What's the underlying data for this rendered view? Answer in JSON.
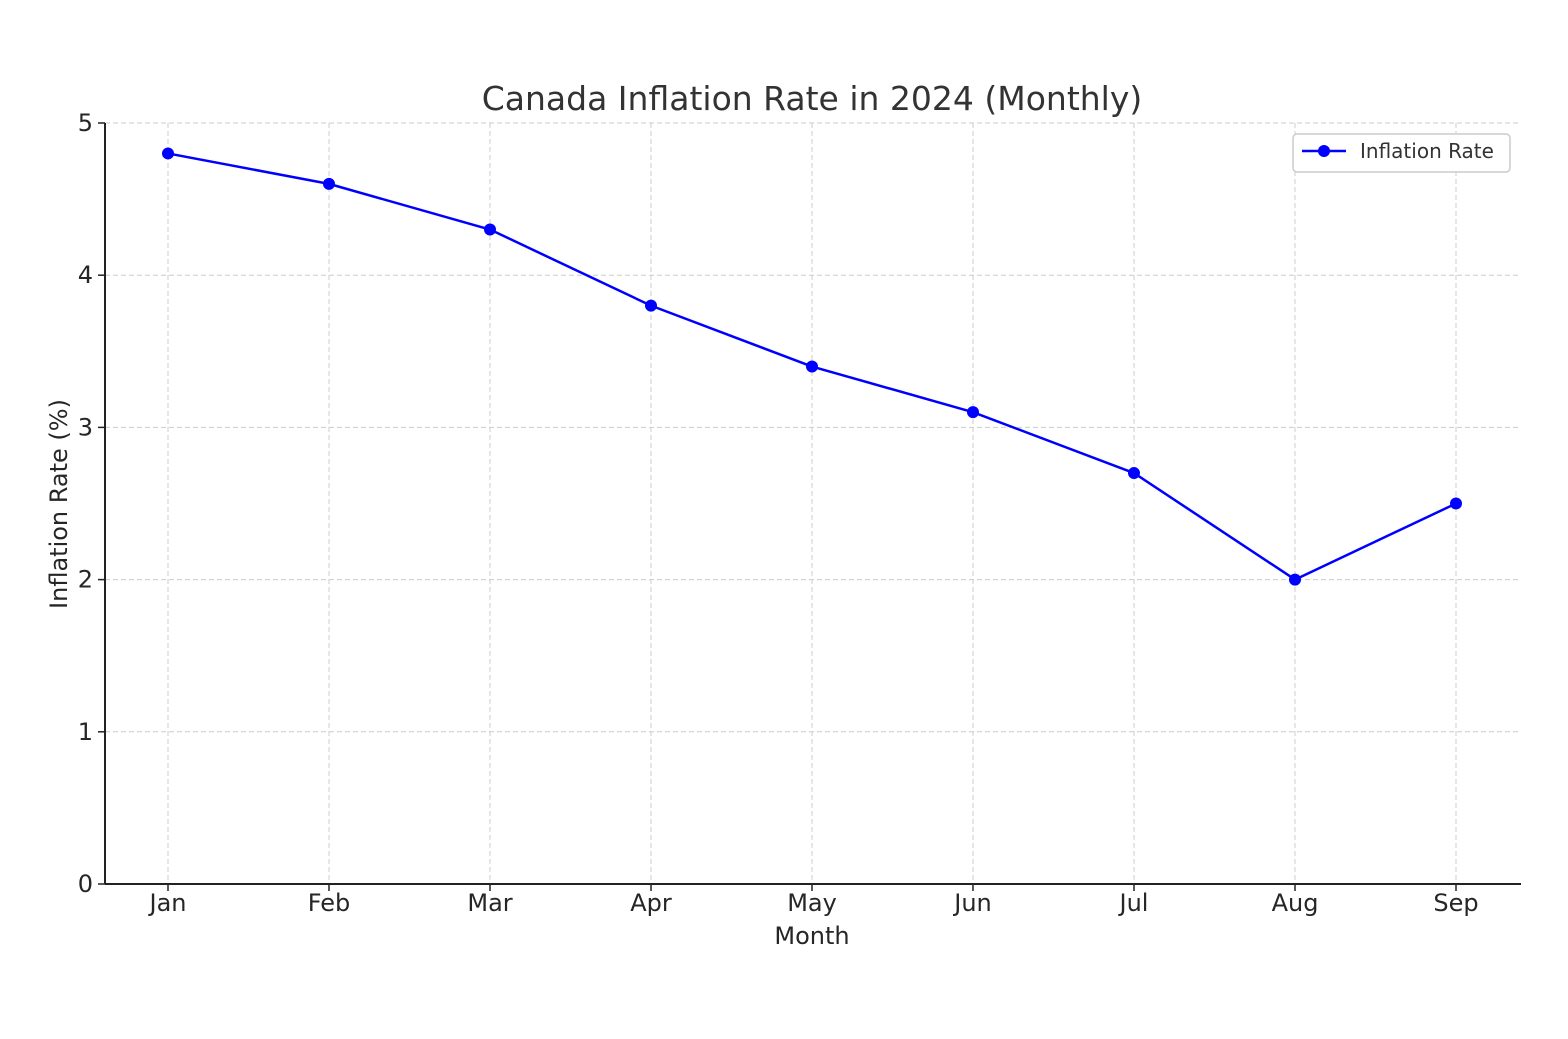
{
  "chart_data": {
    "type": "line",
    "title": "Canada Inflation Rate in 2024 (Monthly)",
    "xlabel": "Month",
    "ylabel": "Inflation Rate (%)",
    "categories": [
      "Jan",
      "Feb",
      "Mar",
      "Apr",
      "May",
      "Jun",
      "Jul",
      "Aug",
      "Sep"
    ],
    "series": [
      {
        "name": "Inflation Rate",
        "values": [
          4.8,
          4.6,
          4.3,
          3.8,
          3.4,
          3.1,
          2.7,
          2.0,
          2.5
        ],
        "color": "#0000ff",
        "marker": "circle"
      }
    ],
    "ylim": [
      0,
      5
    ],
    "yticks": [
      "0",
      "1",
      "2",
      "3",
      "4",
      "5"
    ],
    "grid": true,
    "legend_position": "top-right"
  }
}
